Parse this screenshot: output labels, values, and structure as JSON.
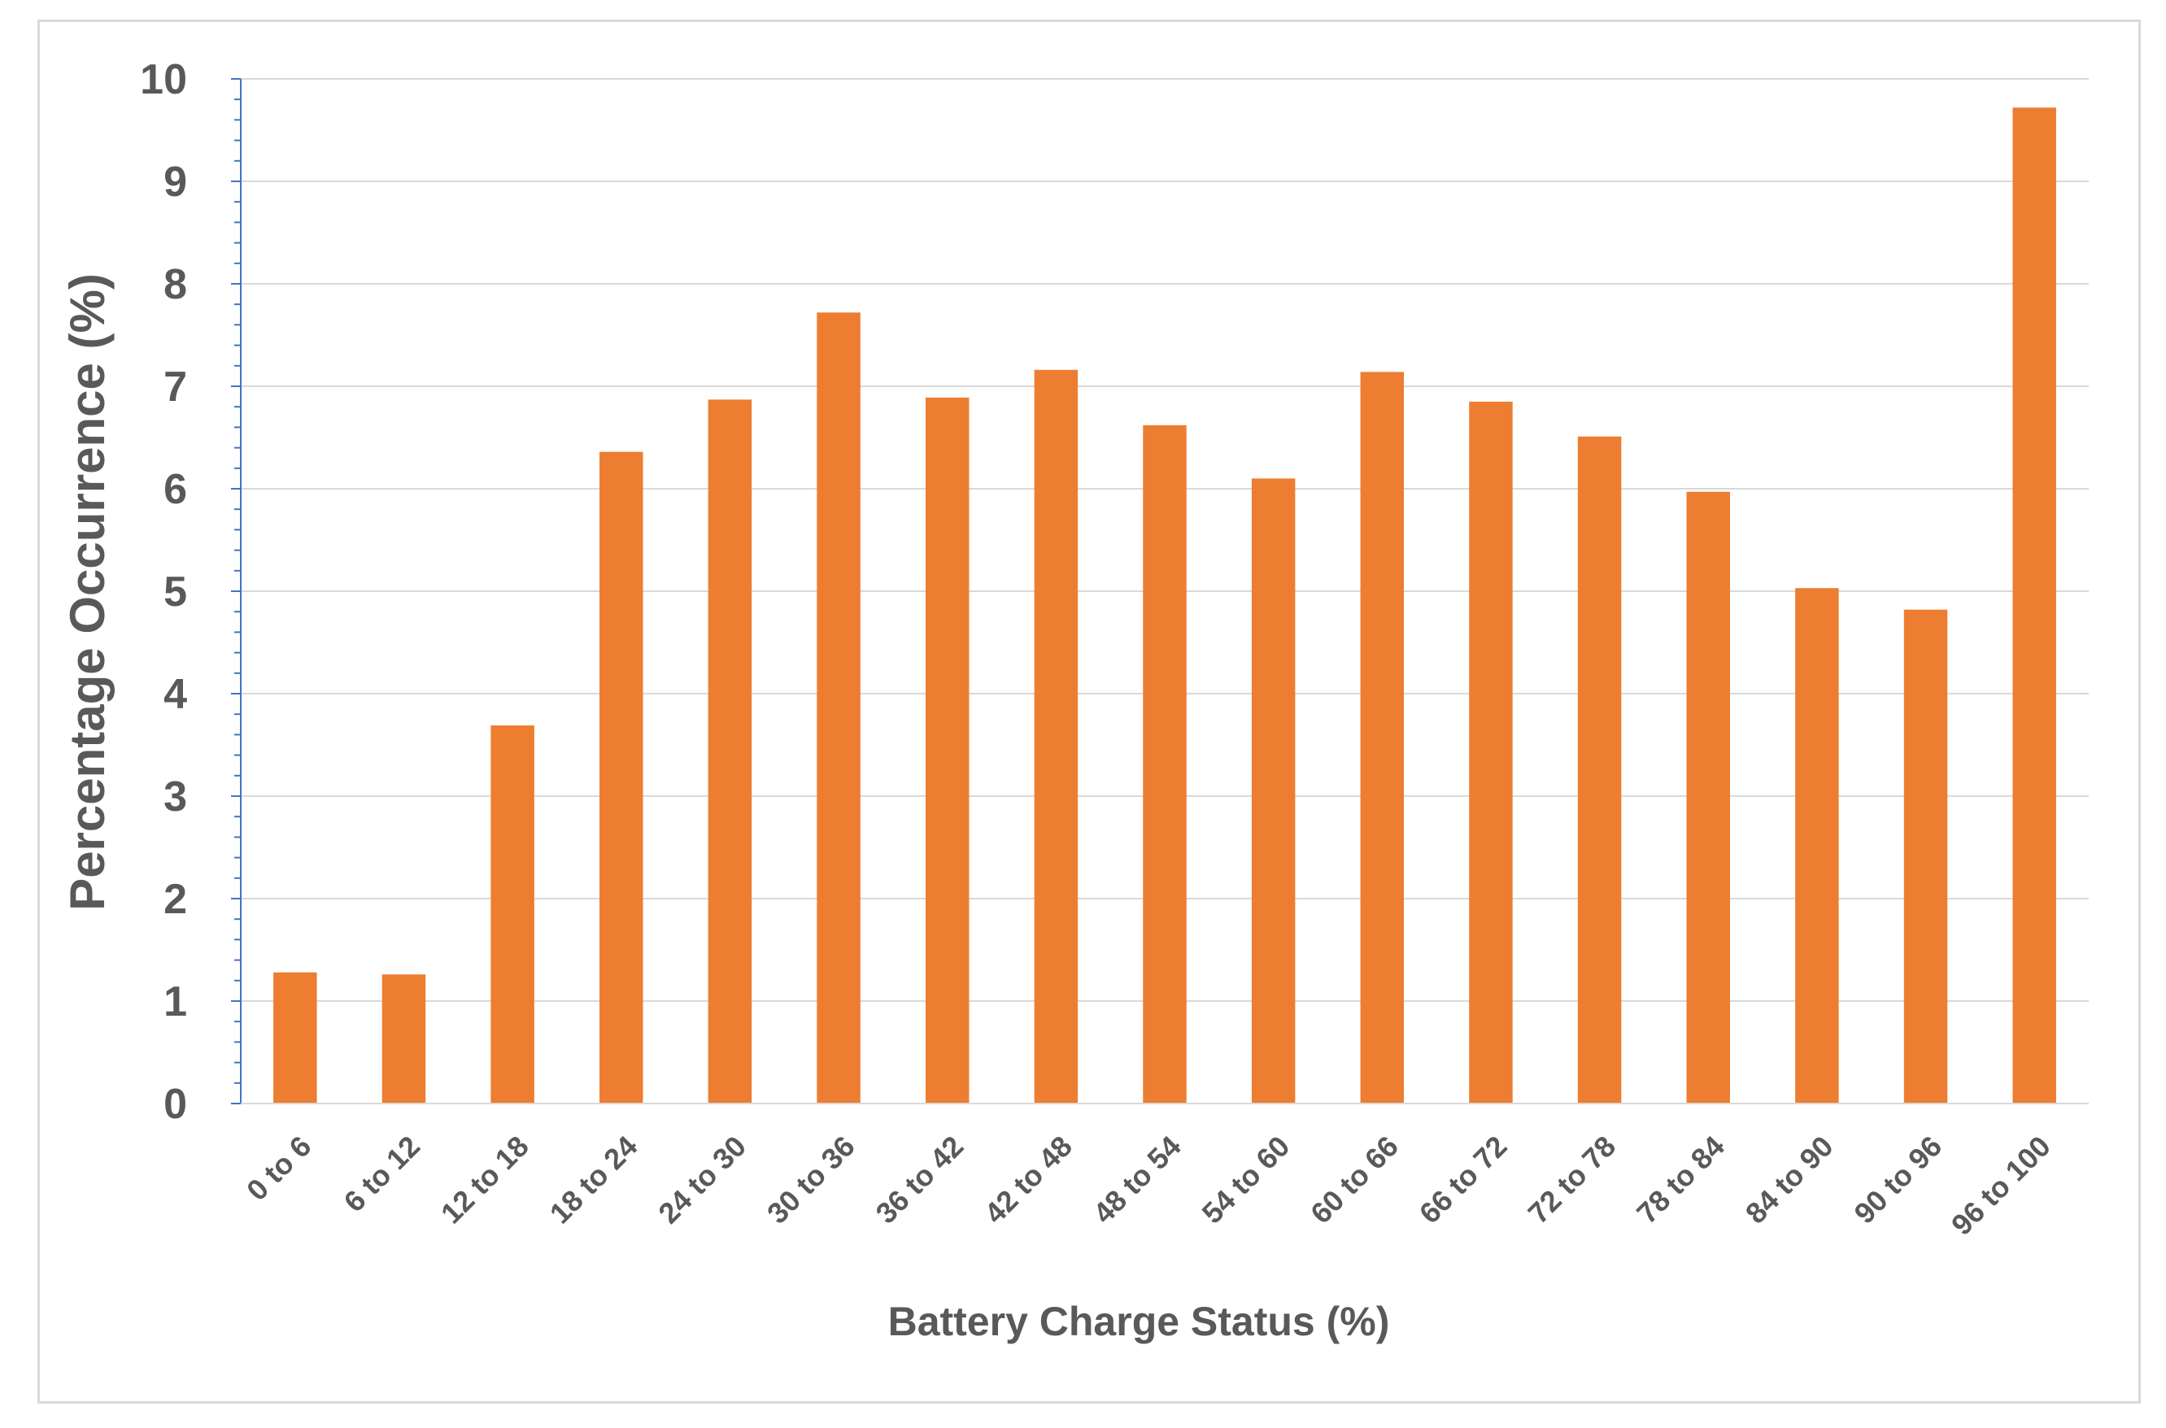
{
  "chart_data": {
    "type": "bar",
    "title": "",
    "xlabel": "Battery Charge Status (%)",
    "ylabel": "Percentage Occurrence  (%)",
    "ylim": [
      0,
      10
    ],
    "yticks": [
      "0",
      "1",
      "2",
      "3",
      "4",
      "5",
      "6",
      "7",
      "8",
      "9",
      "10"
    ],
    "grid": true,
    "legend": "none",
    "bar_color": "#ed7d31",
    "categories": [
      "0 to 6",
      "6 to 12",
      "12 to 18",
      "18 to 24",
      "24 to 30",
      "30 to 36",
      "36 to 42",
      "42 to 48",
      "48 to 54",
      "54 to 60",
      "60 to 66",
      "66 to 72",
      "72 to 78",
      "78 to 84",
      "84 to 90",
      "90 to 96",
      "96 to 100"
    ],
    "values": [
      1.28,
      1.26,
      3.69,
      6.36,
      6.87,
      7.72,
      6.89,
      7.16,
      6.62,
      6.1,
      7.14,
      6.85,
      6.51,
      5.97,
      5.03,
      4.82,
      9.72
    ]
  }
}
